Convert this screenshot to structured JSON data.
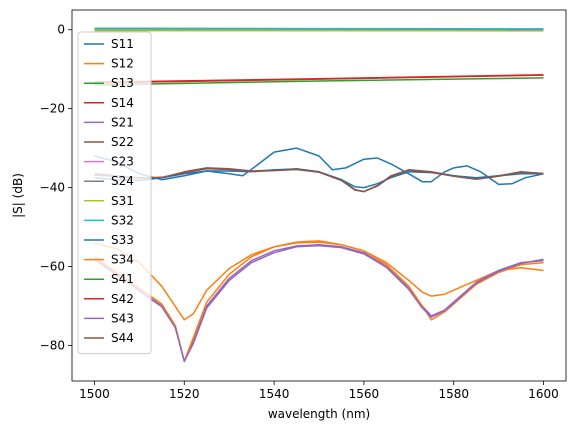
{
  "chart_data": {
    "type": "line",
    "title": "",
    "xlabel": "wavelength (nm)",
    "ylabel": "|S| (dB)",
    "xlim": [
      1495,
      1605
    ],
    "ylim": [
      -89,
      5
    ],
    "xticks": [
      1500,
      1520,
      1540,
      1560,
      1580,
      1600
    ],
    "yticks": [
      0,
      -20,
      -40,
      -60,
      -80
    ],
    "grid": false,
    "legend_position": "left",
    "series": [
      {
        "name": "S11",
        "color": "#1f77b4",
        "x": [
          1500,
          1505,
          1510,
          1515,
          1520,
          1525,
          1530,
          1533,
          1536,
          1540,
          1545,
          1550,
          1553,
          1556,
          1560,
          1563,
          1566,
          1570,
          1573,
          1575,
          1578,
          1580,
          1583,
          1586,
          1590,
          1593,
          1596,
          1600
        ],
        "y": [
          -32,
          -33.5,
          -36.5,
          -38,
          -37,
          -35.8,
          -36.5,
          -37,
          -34.5,
          -31,
          -30,
          -32,
          -35.5,
          -35,
          -32.8,
          -32.5,
          -34,
          -36.5,
          -38.5,
          -38.5,
          -36,
          -35,
          -34.5,
          -36,
          -39.2,
          -39,
          -37.5,
          -36.5
        ]
      },
      {
        "name": "S12",
        "color": "#ff7f0e",
        "x": [
          1500,
          1505,
          1510,
          1515,
          1520,
          1522,
          1525,
          1530,
          1535,
          1540,
          1545,
          1550,
          1555,
          1560,
          1565,
          1570,
          1573,
          1575,
          1578,
          1580,
          1585,
          1590,
          1595,
          1600
        ],
        "y": [
          -54,
          -55.5,
          -59,
          -65,
          -73.5,
          -72,
          -66,
          -60.5,
          -57,
          -55,
          -53.8,
          -53.5,
          -54.5,
          -56,
          -59,
          -63.5,
          -66.5,
          -67.5,
          -67,
          -66,
          -63.5,
          -61,
          -60.3,
          -61
        ]
      },
      {
        "name": "S13",
        "color": "#2ca02c",
        "x": [
          1500,
          1550,
          1600
        ],
        "y": [
          -0.2,
          -0.2,
          -0.2
        ]
      },
      {
        "name": "S14",
        "color": "#d62728",
        "x": [
          1500,
          1550,
          1600
        ],
        "y": [
          -13.5,
          -12.5,
          -11.5
        ]
      },
      {
        "name": "S21",
        "color": "#9467bd",
        "x": [
          1500,
          1505,
          1510,
          1515,
          1518,
          1520,
          1522,
          1525,
          1530,
          1535,
          1540,
          1545,
          1550,
          1555,
          1560,
          1565,
          1570,
          1573,
          1575,
          1578,
          1580,
          1585,
          1590,
          1595,
          1600
        ],
        "y": [
          -58,
          -62,
          -66,
          -70,
          -75,
          -84,
          -79,
          -70,
          -63,
          -58.5,
          -56,
          -54.8,
          -54.5,
          -55,
          -56.5,
          -60,
          -65.5,
          -70,
          -72.5,
          -71,
          -69,
          -64,
          -61,
          -59,
          -58.5
        ]
      },
      {
        "name": "S22",
        "color": "#8c564b",
        "x": [
          1500,
          1505,
          1510,
          1515,
          1520,
          1525,
          1530,
          1535,
          1540,
          1545,
          1550,
          1555,
          1558,
          1560,
          1563,
          1566,
          1570,
          1575,
          1580,
          1585,
          1590,
          1595,
          1600
        ],
        "y": [
          -36.5,
          -37,
          -37.5,
          -37.5,
          -36,
          -35,
          -35.2,
          -35.8,
          -35.6,
          -35.2,
          -36,
          -38,
          -40.5,
          -41,
          -39.5,
          -37,
          -35.5,
          -36,
          -37,
          -37.8,
          -37,
          -36,
          -36.5
        ]
      },
      {
        "name": "S23",
        "color": "#e377c2",
        "x": [
          1500,
          1550,
          1600
        ],
        "y": [
          0.2,
          0.1,
          0
        ]
      },
      {
        "name": "S24",
        "color": "#7f7f7f",
        "x": [
          1500,
          1550,
          1600
        ],
        "y": [
          0.3,
          0.2,
          0.1
        ]
      },
      {
        "name": "S31",
        "color": "#bcbd22",
        "x": [
          1500,
          1550,
          1600
        ],
        "y": [
          -0.1,
          -0.2,
          -0.3
        ]
      },
      {
        "name": "S32",
        "color": "#17becf",
        "x": [
          1500,
          1550,
          1600
        ],
        "y": [
          0.4,
          0.3,
          0.2
        ]
      },
      {
        "name": "S33",
        "color": "#1f77b4",
        "x": [
          1500,
          1505,
          1510,
          1515,
          1520,
          1525,
          1530,
          1535,
          1540,
          1545,
          1550,
          1555,
          1558,
          1560,
          1563,
          1566,
          1570,
          1575,
          1580,
          1585,
          1590,
          1595,
          1600
        ],
        "y": [
          -37.5,
          -38,
          -38.2,
          -37.5,
          -36.5,
          -35.8,
          -35.8,
          -36,
          -35.5,
          -35.3,
          -36,
          -38,
          -39.8,
          -40,
          -39,
          -37.5,
          -36,
          -36.2,
          -37,
          -37.5,
          -37,
          -36.5,
          -36.5
        ]
      },
      {
        "name": "S34",
        "color": "#ff7f0e",
        "x": [
          1500,
          1505,
          1510,
          1515,
          1518,
          1520,
          1522,
          1525,
          1530,
          1535,
          1540,
          1545,
          1550,
          1555,
          1560,
          1565,
          1570,
          1573,
          1575,
          1578,
          1580,
          1585,
          1590,
          1595,
          1600
        ],
        "y": [
          -57.5,
          -61.5,
          -65.5,
          -69.5,
          -75,
          -84,
          -78,
          -69,
          -62,
          -57.5,
          -55,
          -54,
          -53.8,
          -54.5,
          -56,
          -59.5,
          -65,
          -70,
          -73.5,
          -71.5,
          -69.5,
          -64.5,
          -61.5,
          -59.5,
          -59
        ]
      },
      {
        "name": "S41",
        "color": "#2ca02c",
        "x": [
          1500,
          1550,
          1600
        ],
        "y": [
          -14,
          -13,
          -12.2
        ]
      },
      {
        "name": "S42",
        "color": "#d62728",
        "x": [
          1500,
          1550,
          1600
        ],
        "y": [
          -13.3,
          -12.4,
          -11.4
        ]
      },
      {
        "name": "S43",
        "color": "#9467bd",
        "x": [
          1500,
          1505,
          1510,
          1515,
          1518,
          1520,
          1522,
          1525,
          1530,
          1535,
          1540,
          1545,
          1550,
          1555,
          1560,
          1565,
          1570,
          1573,
          1575,
          1578,
          1580,
          1585,
          1590,
          1595,
          1600
        ],
        "y": [
          -58.2,
          -62.2,
          -66.2,
          -70.2,
          -75.5,
          -84,
          -79.5,
          -70.5,
          -63.5,
          -59,
          -56.5,
          -55,
          -54.7,
          -55.2,
          -56.8,
          -60.2,
          -65.8,
          -70.5,
          -72.8,
          -71.2,
          -69.2,
          -64.2,
          -61.2,
          -59.2,
          -58.2
        ]
      },
      {
        "name": "S44",
        "color": "#8c564b",
        "x": [
          1500,
          1505,
          1510,
          1515,
          1520,
          1525,
          1530,
          1535,
          1540,
          1545,
          1550,
          1555,
          1558,
          1560,
          1563,
          1566,
          1570,
          1575,
          1580,
          1585,
          1590,
          1595,
          1600
        ],
        "y": [
          -36.8,
          -37.2,
          -37.6,
          -37.4,
          -36.2,
          -35.2,
          -35.4,
          -35.9,
          -35.7,
          -35.4,
          -36.1,
          -38.2,
          -40.6,
          -41,
          -39.6,
          -37.2,
          -35.6,
          -36.1,
          -37.1,
          -37.9,
          -37.1,
          -36.1,
          -36.4
        ]
      }
    ]
  }
}
